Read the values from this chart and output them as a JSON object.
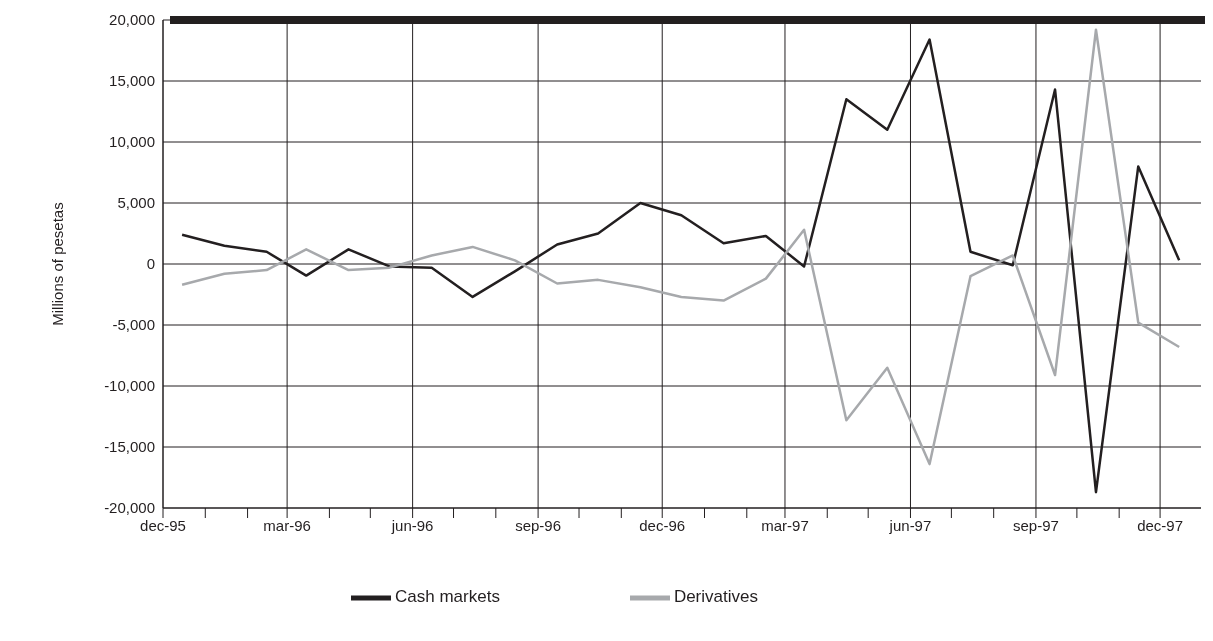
{
  "chart_data": {
    "type": "line",
    "ylabel": "Millions of pesetas",
    "x": [
      "1995-12-15",
      "1996-01-15",
      "1996-02-15",
      "1996-03-15",
      "1996-04-15",
      "1996-05-15",
      "1996-06-15",
      "1996-07-15",
      "1996-08-15",
      "1996-09-15",
      "1996-10-15",
      "1996-11-15",
      "1996-12-15",
      "1997-01-15",
      "1997-02-15",
      "1997-03-15",
      "1997-04-15",
      "1997-05-15",
      "1997-06-15",
      "1997-07-15",
      "1997-08-15",
      "1997-09-15",
      "1997-10-15",
      "1997-11-15",
      "1997-12-15"
    ],
    "series": [
      {
        "name": "Cash markets",
        "color": "#231f20",
        "values": [
          2400,
          1500,
          1000,
          -950,
          1200,
          -200,
          -300,
          -2700,
          -600,
          1600,
          2500,
          5000,
          4000,
          1700,
          2300,
          -200,
          13500,
          11000,
          18400,
          1000,
          -100,
          14300,
          -18700,
          8000,
          300
        ]
      },
      {
        "name": "Derivatives",
        "color": "#a7a9ac",
        "values": [
          -1700,
          -800,
          -500,
          1200,
          -500,
          -300,
          700,
          1400,
          300,
          -1600,
          -1300,
          -1900,
          -2700,
          -3000,
          -1200,
          2800,
          -12800,
          -8500,
          -16400,
          -1000,
          700,
          -9100,
          19200,
          -4800,
          -6800
        ]
      }
    ],
    "xlim": [
      "1995-12-01",
      "1997-12-31"
    ],
    "xticks": [
      {
        "value": "1995-12-01",
        "label": "dec-95"
      },
      {
        "value": "1996-01-01",
        "label": null
      },
      {
        "value": "1996-02-01",
        "label": null
      },
      {
        "value": "1996-03-01",
        "label": "mar-96"
      },
      {
        "value": "1996-04-01",
        "label": null
      },
      {
        "value": "1996-05-01",
        "label": null
      },
      {
        "value": "1996-06-01",
        "label": "jun-96"
      },
      {
        "value": "1996-07-01",
        "label": null
      },
      {
        "value": "1996-08-01",
        "label": null
      },
      {
        "value": "1996-09-01",
        "label": "sep-96"
      },
      {
        "value": "1996-10-01",
        "label": null
      },
      {
        "value": "1996-11-01",
        "label": null
      },
      {
        "value": "1996-12-01",
        "label": "dec-96"
      },
      {
        "value": "1997-01-01",
        "label": null
      },
      {
        "value": "1997-02-01",
        "label": null
      },
      {
        "value": "1997-03-01",
        "label": "mar-97"
      },
      {
        "value": "1997-04-01",
        "label": null
      },
      {
        "value": "1997-05-01",
        "label": null
      },
      {
        "value": "1997-06-01",
        "label": "jun-97"
      },
      {
        "value": "1997-07-01",
        "label": null
      },
      {
        "value": "1997-08-01",
        "label": null
      },
      {
        "value": "1997-09-01",
        "label": "sep-97"
      },
      {
        "value": "1997-10-01",
        "label": null
      },
      {
        "value": "1997-11-01",
        "label": null
      },
      {
        "value": "1997-12-01",
        "label": "dec-97"
      }
    ],
    "ylim": [
      -20000,
      20000
    ],
    "yticks": [
      {
        "value": -20000,
        "label": "-20,000"
      },
      {
        "value": -15000,
        "label": "-15,000"
      },
      {
        "value": -10000,
        "label": "-10,000"
      },
      {
        "value": -5000,
        "label": "-5,000"
      },
      {
        "value": 0,
        "label": "0"
      },
      {
        "value": 5000,
        "label": "5,000"
      },
      {
        "value": 10000,
        "label": "10,000"
      },
      {
        "value": 15000,
        "label": "15,000"
      },
      {
        "value": 20000,
        "label": "20,000"
      }
    ],
    "grid": true,
    "legend": "bottom",
    "marker": "none",
    "line_style": "solid"
  }
}
